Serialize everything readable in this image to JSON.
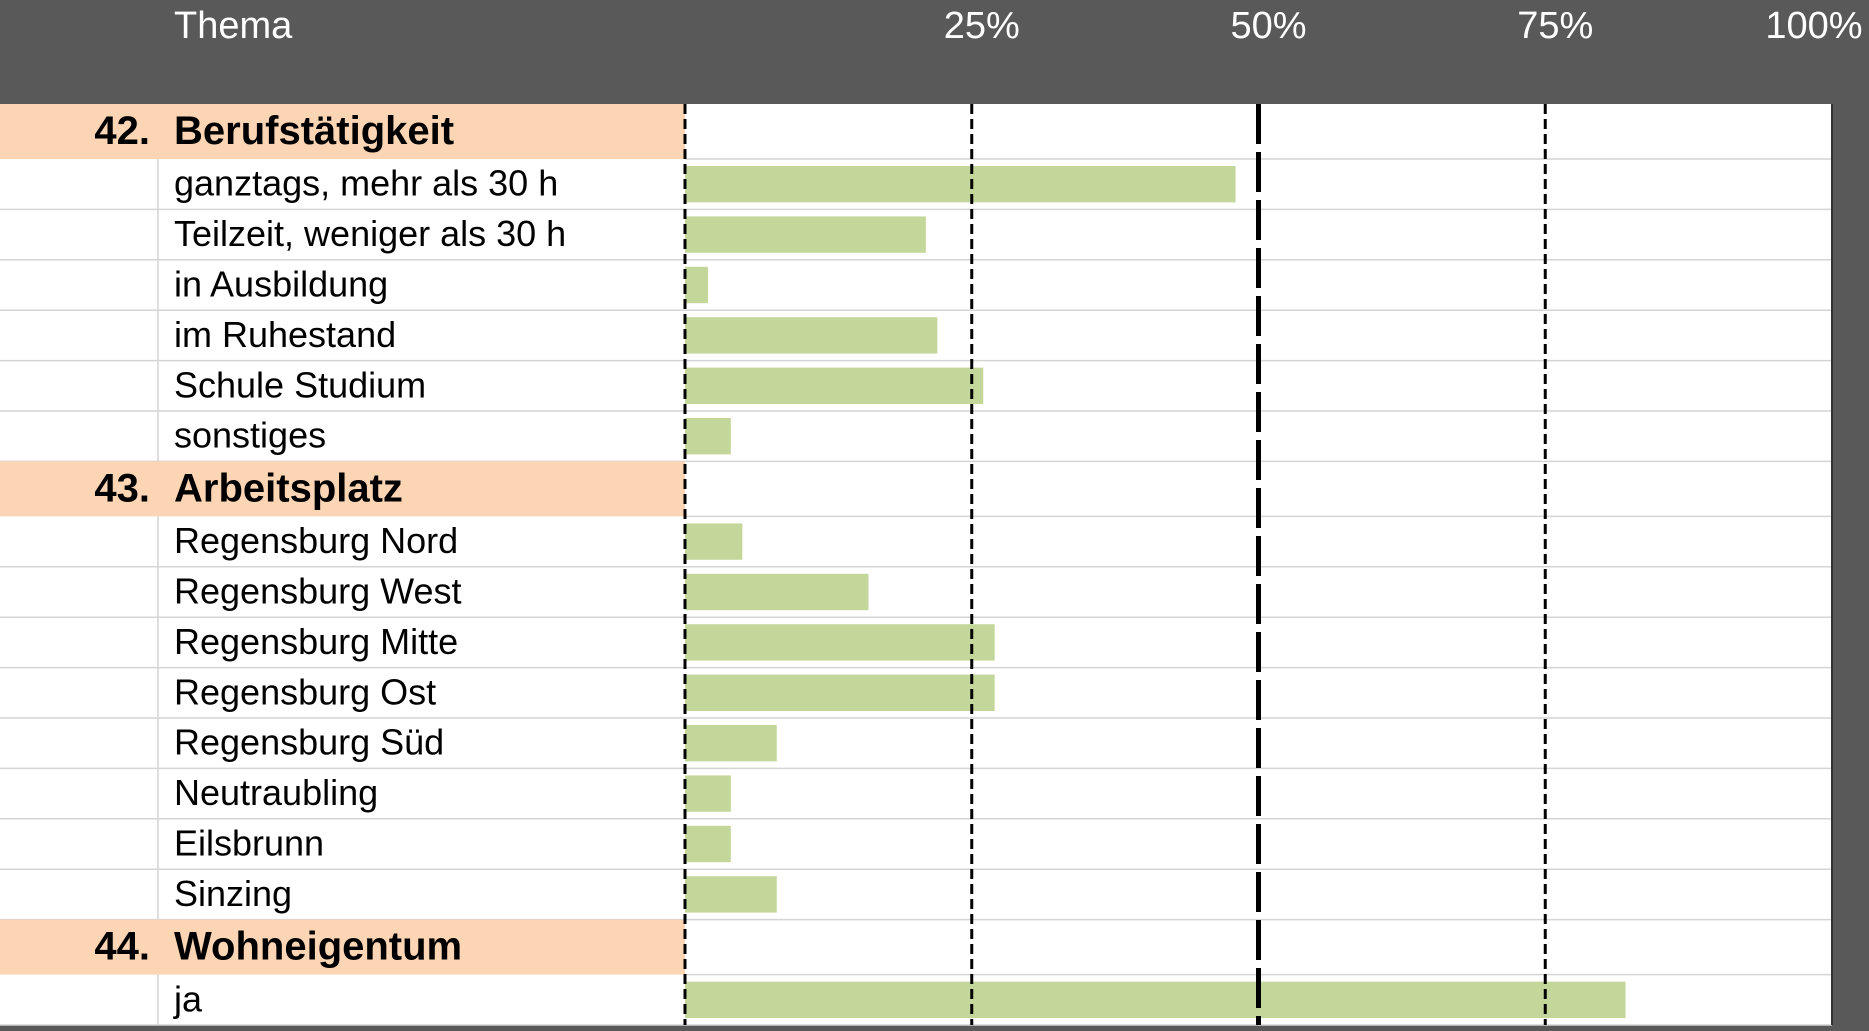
{
  "header": {
    "title": "Thema"
  },
  "chart_data": {
    "type": "bar",
    "color": "#c4d79b",
    "heading_color": "#fcd5b4",
    "xlim": [
      0,
      100
    ],
    "xticks": [
      {
        "value": 25,
        "label": "25%"
      },
      {
        "value": 50,
        "label": "50%"
      },
      {
        "value": 75,
        "label": "75%"
      },
      {
        "value": 100,
        "label": "100%"
      }
    ],
    "sections": [
      {
        "number": "42.",
        "title": "Berufstätigkeit",
        "categories": [
          "ganztags, mehr als 30 h",
          "Teilzeit, weniger als 30 h",
          "in Ausbildung",
          "im Ruhestand",
          "Schule Studium",
          "sonstiges"
        ],
        "values": [
          48,
          21,
          2,
          22,
          26,
          4
        ]
      },
      {
        "number": "43.",
        "title": "Arbeitsplatz",
        "categories": [
          "Regensburg Nord",
          "Regensburg West",
          "Regensburg Mitte",
          "Regensburg Ost",
          "Regensburg Süd",
          "Neutraubling",
          "Eilsbrunn",
          "Sinzing"
        ],
        "values": [
          5,
          16,
          27,
          27,
          8,
          4,
          4,
          8
        ]
      },
      {
        "number": "44.",
        "title": "Wohneigentum",
        "categories": [
          "ja"
        ],
        "values": [
          82
        ]
      }
    ]
  }
}
